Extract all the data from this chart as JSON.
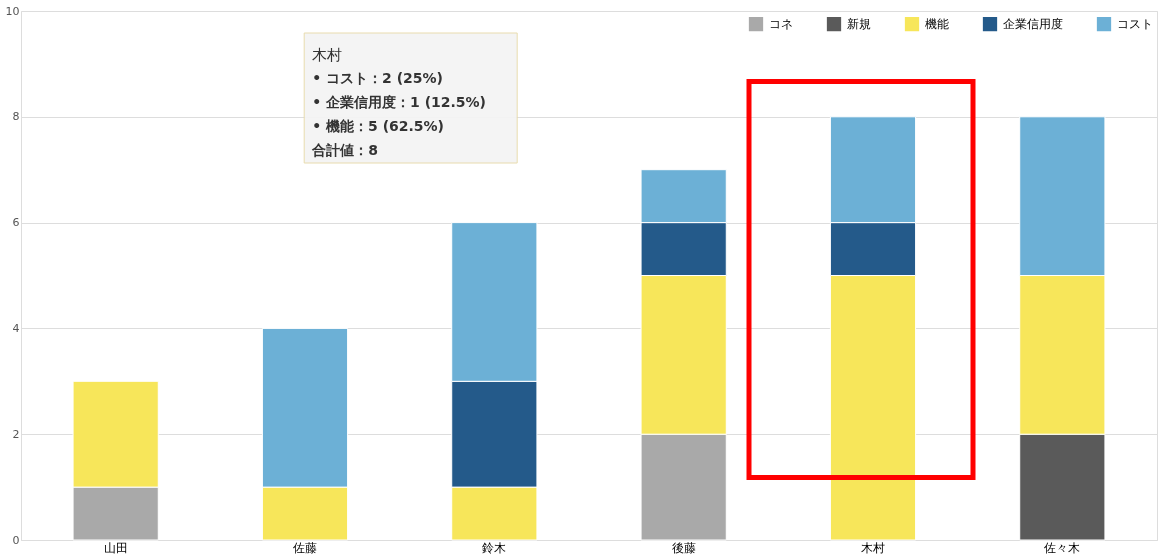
{
  "chart_data": {
    "type": "bar",
    "stacked": true,
    "categories": [
      "山田",
      "佐藤",
      "鈴木",
      "後藤",
      "木村",
      "佐々木"
    ],
    "series": [
      {
        "name": "コネ",
        "color": "#a9a9a9",
        "values": [
          1,
          null,
          null,
          2,
          null,
          null
        ]
      },
      {
        "name": "新規",
        "color": "#5a5a5a",
        "values": [
          null,
          null,
          null,
          null,
          null,
          2
        ]
      },
      {
        "name": "機能",
        "color": "#f7e65a",
        "values": [
          2,
          1,
          1,
          3,
          5,
          3
        ]
      },
      {
        "name": "企業信用度",
        "color": "#245a8a",
        "values": [
          null,
          null,
          2,
          1,
          1,
          null
        ]
      },
      {
        "name": "コスト",
        "color": "#6cb0d6",
        "values": [
          null,
          3,
          3,
          1,
          2,
          3
        ]
      }
    ],
    "ylim": [
      0,
      10
    ],
    "yticks": [
      0,
      2,
      4,
      6,
      8,
      10
    ],
    "grid": "y",
    "legend": "top right",
    "annotations": [
      "木村",
      "• コスト：2 (25%)",
      "• 企業信用度：1 (12.5%)",
      "• 機能：5 (62.5%)",
      "合計値：8"
    ]
  }
}
